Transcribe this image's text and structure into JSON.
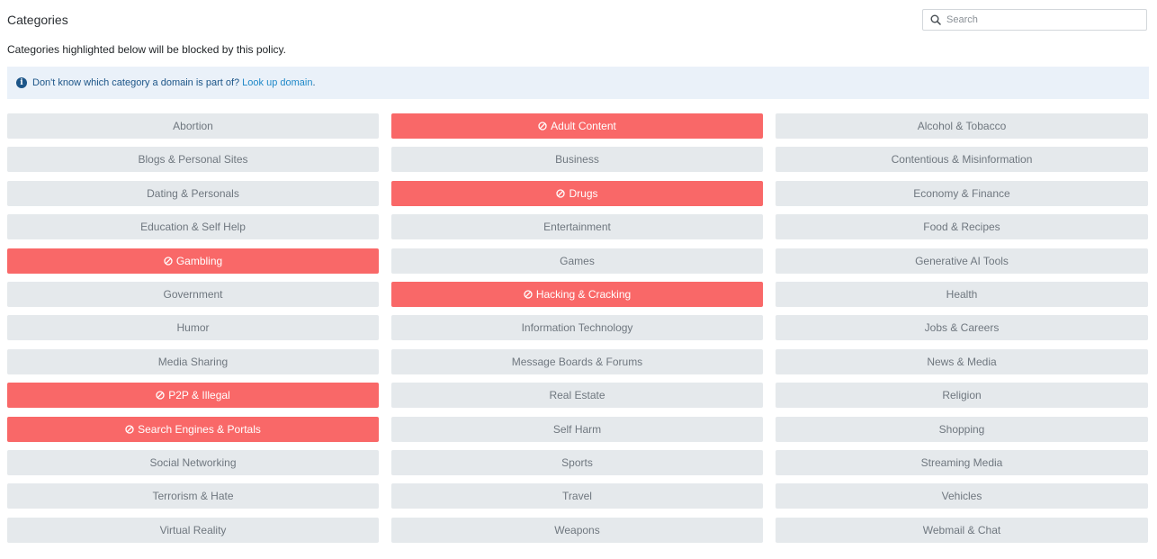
{
  "header": {
    "title": "Categories",
    "search_placeholder": "Search"
  },
  "subtitle": "Categories highlighted below will be blocked by this policy.",
  "info": {
    "text": "Don't know which category a domain is part of?",
    "link_label": "Look up domain",
    "suffix": "."
  },
  "icons": {
    "search": "search-icon",
    "info": "info-icon",
    "blocked": "block-icon"
  },
  "colors": {
    "blocked_bg": "#f96868",
    "normal_bg": "#e5e9ec",
    "link": "#1e88c8"
  },
  "categories": [
    {
      "label": "Abortion",
      "blocked": false
    },
    {
      "label": "Adult Content",
      "blocked": true
    },
    {
      "label": "Alcohol & Tobacco",
      "blocked": false
    },
    {
      "label": "Blogs & Personal Sites",
      "blocked": false
    },
    {
      "label": "Business",
      "blocked": false
    },
    {
      "label": "Contentious & Misinformation",
      "blocked": false
    },
    {
      "label": "Dating & Personals",
      "blocked": false
    },
    {
      "label": "Drugs",
      "blocked": true
    },
    {
      "label": "Economy & Finance",
      "blocked": false
    },
    {
      "label": "Education & Self Help",
      "blocked": false
    },
    {
      "label": "Entertainment",
      "blocked": false
    },
    {
      "label": "Food & Recipes",
      "blocked": false
    },
    {
      "label": "Gambling",
      "blocked": true
    },
    {
      "label": "Games",
      "blocked": false
    },
    {
      "label": "Generative AI Tools",
      "blocked": false
    },
    {
      "label": "Government",
      "blocked": false
    },
    {
      "label": "Hacking & Cracking",
      "blocked": true
    },
    {
      "label": "Health",
      "blocked": false
    },
    {
      "label": "Humor",
      "blocked": false
    },
    {
      "label": "Information Technology",
      "blocked": false
    },
    {
      "label": "Jobs & Careers",
      "blocked": false
    },
    {
      "label": "Media Sharing",
      "blocked": false
    },
    {
      "label": "Message Boards & Forums",
      "blocked": false
    },
    {
      "label": "News & Media",
      "blocked": false
    },
    {
      "label": "P2P & Illegal",
      "blocked": true
    },
    {
      "label": "Real Estate",
      "blocked": false
    },
    {
      "label": "Religion",
      "blocked": false
    },
    {
      "label": "Search Engines & Portals",
      "blocked": true
    },
    {
      "label": "Self Harm",
      "blocked": false
    },
    {
      "label": "Shopping",
      "blocked": false
    },
    {
      "label": "Social Networking",
      "blocked": false
    },
    {
      "label": "Sports",
      "blocked": false
    },
    {
      "label": "Streaming Media",
      "blocked": false
    },
    {
      "label": "Terrorism & Hate",
      "blocked": false
    },
    {
      "label": "Travel",
      "blocked": false
    },
    {
      "label": "Vehicles",
      "blocked": false
    },
    {
      "label": "Virtual Reality",
      "blocked": false
    },
    {
      "label": "Weapons",
      "blocked": false
    },
    {
      "label": "Webmail & Chat",
      "blocked": false
    }
  ]
}
